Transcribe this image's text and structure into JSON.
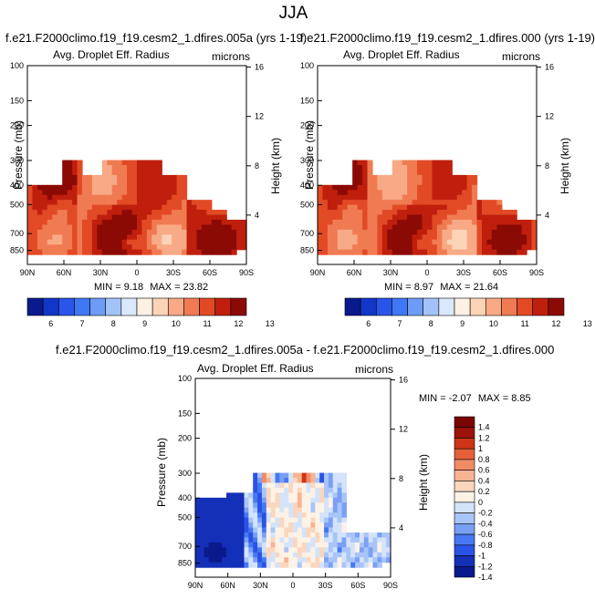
{
  "page": {
    "title": "JJA"
  },
  "colors": {
    "seq": [
      "#0a1a8c",
      "#1236c8",
      "#2a55ea",
      "#3f77f4",
      "#6d9cf6",
      "#a3c3f8",
      "#dbe8fb",
      "#fdf1e4",
      "#fbd3b6",
      "#f7aa85",
      "#f07b52",
      "#e24a26",
      "#bf1f0c",
      "#8b0a05"
    ],
    "diff": [
      "#0a1a8c",
      "#1430b8",
      "#2a52e6",
      "#4678f2",
      "#7aa0f5",
      "#a9c4f8",
      "#d3e3fa",
      "#fdf2e6",
      "#fbd6bd",
      "#f8b393",
      "#f08b65",
      "#e4603b",
      "#cd3516",
      "#9c1409",
      "#7a0505"
    ]
  },
  "chart_data": [
    {
      "type": "heatmap",
      "name": "panel-left",
      "title": "f.e21.F2000climo.f19_f19.cesm2_1.dfires.005a (yrs 1-19)",
      "subtitle": "Avg. Droplet Eff. Radius",
      "units": "microns",
      "ylabel": "Pressure (mb)",
      "ylabel_right": "Height (km)",
      "x_ticks": [
        "90N",
        "60N",
        "30N",
        "0",
        "30S",
        "60S",
        "90S"
      ],
      "y_ticks": [
        "100",
        "150",
        "200",
        "300",
        "400",
        "500",
        "700",
        "850"
      ],
      "y_ticks_right": [
        "16",
        "12",
        "8",
        "4"
      ],
      "stats": {
        "min_label": "MIN =",
        "min": "9.18",
        "max_label": "MAX =",
        "max": "23.82"
      },
      "colorbar": {
        "labels": [
          "6",
          "7",
          "8",
          "9",
          "10",
          "11",
          "12",
          "13"
        ]
      }
    },
    {
      "type": "heatmap",
      "name": "panel-right",
      "title": "f.e21.F2000climo.f19_f19.cesm2_1.dfires.000 (yrs 1-19)",
      "subtitle": "Avg. Droplet Eff. Radius",
      "units": "microns",
      "ylabel": "Pressure (mb)",
      "ylabel_right": "Height (km)",
      "x_ticks": [
        "90N",
        "60N",
        "30N",
        "0",
        "30S",
        "60S",
        "90S"
      ],
      "y_ticks": [
        "100",
        "150",
        "200",
        "300",
        "400",
        "500",
        "700",
        "850"
      ],
      "y_ticks_right": [
        "16",
        "12",
        "8",
        "4"
      ],
      "stats": {
        "min_label": "MIN =",
        "min": "8.97",
        "max_label": "MAX =",
        "max": "21.64"
      },
      "colorbar": {
        "labels": [
          "6",
          "7",
          "8",
          "9",
          "10",
          "11",
          "12",
          "13"
        ]
      }
    },
    {
      "type": "heatmap",
      "name": "panel-diff",
      "title": "f.e21.F2000climo.f19_f19.cesm2_1.dfires.005a - f.e21.F2000climo.f19_f19.cesm2_1.dfires.000",
      "subtitle": "Avg. Droplet Eff. Radius",
      "units": "microns",
      "ylabel": "Pressure (mb)",
      "ylabel_right": "Height (km)",
      "x_ticks": [
        "90N",
        "60N",
        "30N",
        "0",
        "30S",
        "60S",
        "90S"
      ],
      "y_ticks": [
        "100",
        "150",
        "200",
        "300",
        "400",
        "500",
        "700",
        "850"
      ],
      "y_ticks_right": [
        "16",
        "12",
        "8",
        "4"
      ],
      "stats": {
        "min_label": "MIN =",
        "min": "-2.07",
        "max_label": "MAX =",
        "max": "8.85"
      },
      "colorbar": {
        "labels": [
          "1.4",
          "1.2",
          "1",
          "0.8",
          "0.6",
          "0.4",
          "0.2",
          "0",
          "-0.2",
          "-0.4",
          "-0.6",
          "-0.8",
          "-1",
          "-1.2",
          "-1.4"
        ]
      }
    }
  ]
}
